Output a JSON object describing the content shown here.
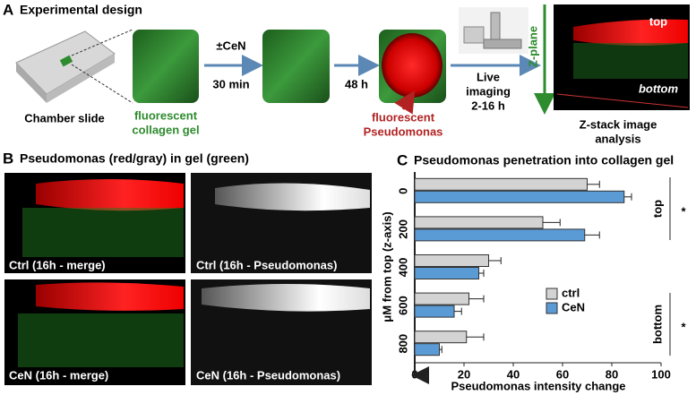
{
  "panel_a": {
    "letter": "A",
    "title": "Experimental design",
    "chamber_label": "Chamber slide",
    "gel_label": [
      "fluorescent",
      "collagen gel"
    ],
    "treatment": "±CeN",
    "time_1": "30 min",
    "time_2": "48 h",
    "bacteria_label": [
      "fluorescent",
      "Pseudomonas"
    ],
    "imaging_label": [
      "Live",
      "imaging",
      "2-16 h"
    ],
    "z_plane": "Z-plane",
    "stack_top": "top",
    "stack_bottom": "bottom",
    "analysis_label": [
      "Z-stack image",
      "analysis"
    ]
  },
  "panel_b": {
    "letter": "B",
    "title": "Pseudomonas (red/gray) in gel (green)",
    "images": [
      "Ctrl (16h - merge)",
      "Ctrl (16h - Pseudomonas)",
      "CeN (16h - merge)",
      "CeN (16h - Pseudomonas)"
    ]
  },
  "chart_data": {
    "type": "hbar",
    "letter": "C",
    "title": "Pseudomonas penetration into collagen gel",
    "x_label": "Pseudomonas intensity change",
    "y_label": "μM from top (z-axis)",
    "categories": [
      "0",
      "200",
      "400",
      "600",
      "800"
    ],
    "series": [
      {
        "name": "ctrl",
        "color": "#d3d3d3",
        "values": [
          70,
          52,
          30,
          22,
          21
        ],
        "errors": [
          5,
          7,
          5,
          6,
          7
        ]
      },
      {
        "name": "CeN",
        "color": "#5b9bd5",
        "values": [
          85,
          69,
          26,
          16,
          10
        ],
        "errors": [
          3,
          6,
          2,
          3,
          1
        ]
      }
    ],
    "xlim": [
      0,
      100
    ],
    "xticks": [
      0,
      20,
      40,
      60,
      80,
      100
    ],
    "annotations": {
      "top": "top",
      "bottom": "bottom",
      "sig_top": "*",
      "sig_bottom": "*"
    },
    "legend": "lower right"
  }
}
